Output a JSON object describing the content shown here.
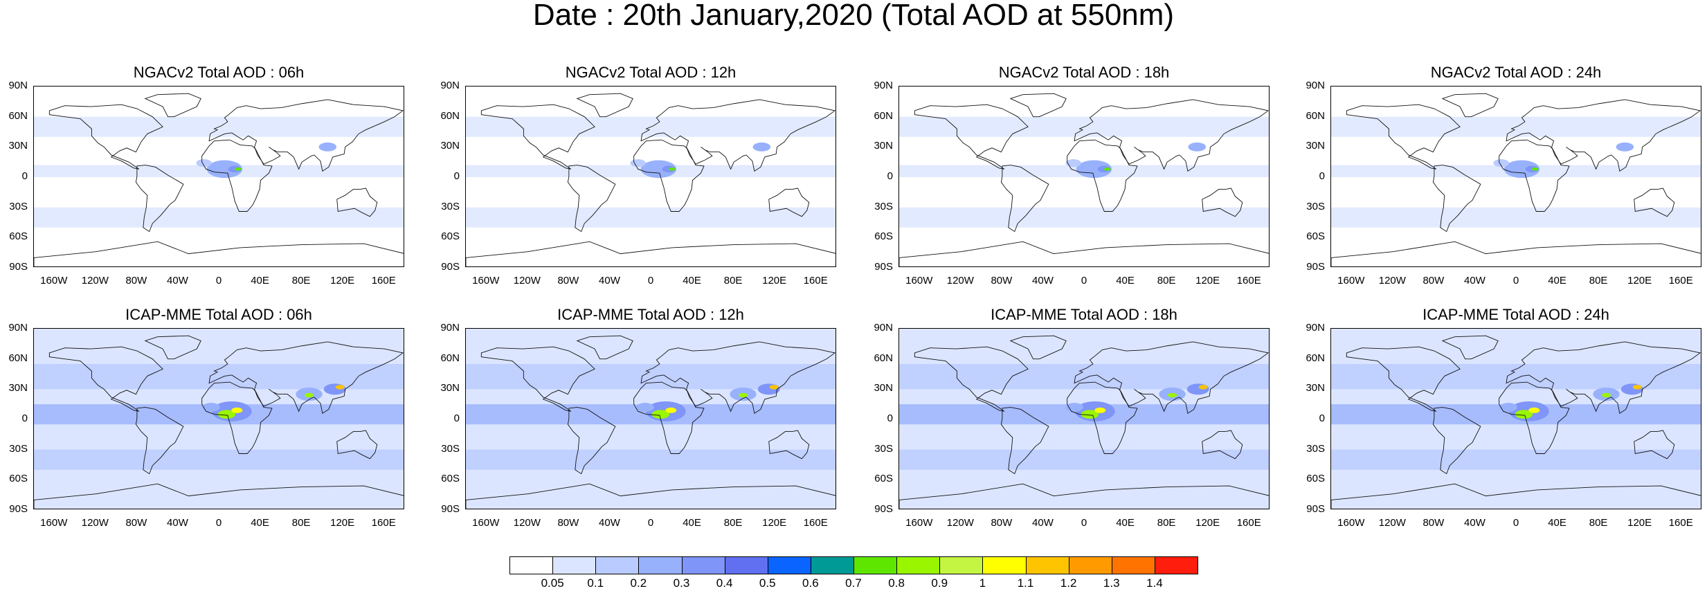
{
  "title": "Date : 20th January,2020 (Total AOD at 550nm)",
  "lat_labels": [
    "90N",
    "60N",
    "30N",
    "0",
    "30S",
    "60S",
    "90S"
  ],
  "lon_labels": [
    "160W",
    "120W",
    "80W",
    "40W",
    "0",
    "40E",
    "80E",
    "120E",
    "160E"
  ],
  "panels": [
    {
      "title": "NGACv2 Total AOD : 06h",
      "model": "NGACv2",
      "hour": "06h"
    },
    {
      "title": "NGACv2 Total AOD : 12h",
      "model": "NGACv2",
      "hour": "12h"
    },
    {
      "title": "NGACv2 Total AOD : 18h",
      "model": "NGACv2",
      "hour": "18h"
    },
    {
      "title": "NGACv2 Total AOD : 24h",
      "model": "NGACv2",
      "hour": "24h"
    },
    {
      "title": "ICAP-MME Total AOD : 06h",
      "model": "ICAP-MME",
      "hour": "06h"
    },
    {
      "title": "ICAP-MME Total AOD : 12h",
      "model": "ICAP-MME",
      "hour": "12h"
    },
    {
      "title": "ICAP-MME Total AOD : 18h",
      "model": "ICAP-MME",
      "hour": "18h"
    },
    {
      "title": "ICAP-MME Total AOD : 24h",
      "model": "ICAP-MME",
      "hour": "24h"
    }
  ],
  "colorbar": {
    "labels": [
      "0.05",
      "0.1",
      "0.2",
      "0.3",
      "0.4",
      "0.5",
      "0.6",
      "0.7",
      "0.8",
      "0.9",
      "1",
      "1.1",
      "1.2",
      "1.3",
      "1.4"
    ],
    "colors": [
      "#ffffff",
      "#dbe5ff",
      "#b9cbff",
      "#98b1fd",
      "#7f95f8",
      "#6070f0",
      "#0a64ff",
      "#009a96",
      "#5ee600",
      "#99f500",
      "#c4f542",
      "#ffff00",
      "#ffc400",
      "#ff9a00",
      "#ff7300",
      "#ff1d0d"
    ]
  }
}
